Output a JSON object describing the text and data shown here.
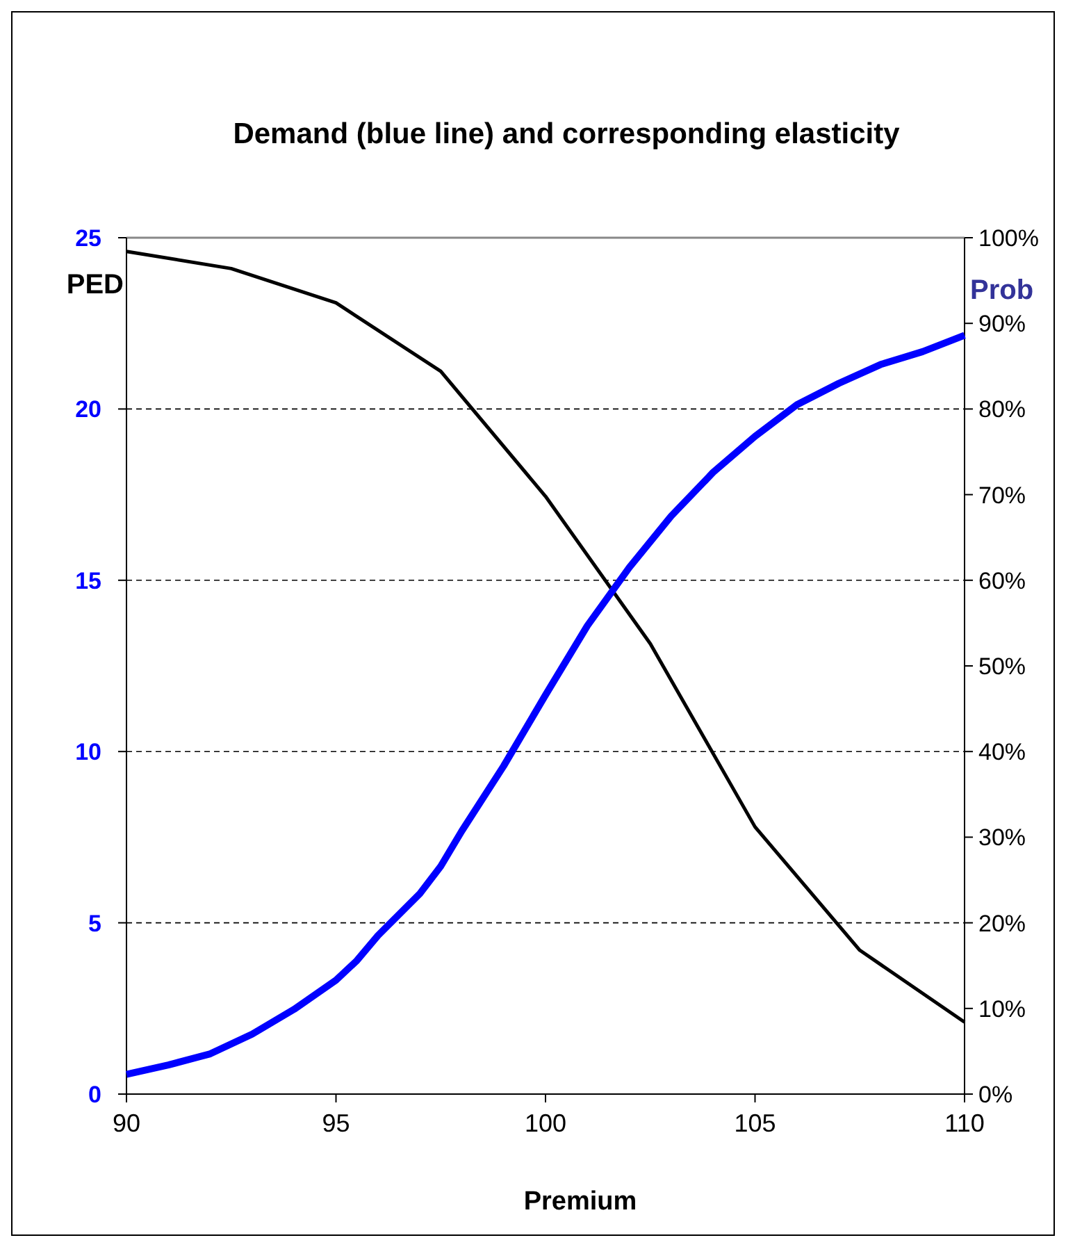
{
  "chart_data": {
    "type": "line",
    "title": "Demand (blue line) and corresponding elasticity",
    "xlabel": "Premium",
    "ylabel": "PED",
    "y2label": "Prob",
    "xlim": [
      90,
      110
    ],
    "xticks": [
      90,
      95,
      100,
      105,
      110
    ],
    "ylim": [
      0,
      25
    ],
    "yticks": [
      0,
      5,
      10,
      15,
      20,
      25
    ],
    "y2lim": [
      0,
      100
    ],
    "y2ticks": [
      {
        "value": 0,
        "label": "0%"
      },
      {
        "value": 10,
        "label": "10%"
      },
      {
        "value": 20,
        "label": "20%"
      },
      {
        "value": 30,
        "label": "30%"
      },
      {
        "value": 40,
        "label": "40%"
      },
      {
        "value": 50,
        "label": "50%"
      },
      {
        "value": 60,
        "label": "60%"
      },
      {
        "value": 70,
        "label": "70%"
      },
      {
        "value": 80,
        "label": "80%"
      },
      {
        "value": 90,
        "label": "90%"
      },
      {
        "value": 100,
        "label": "100%"
      }
    ],
    "grid": "y",
    "marker": "none",
    "line_style": "solid",
    "series": [
      {
        "color": "#000000",
        "x": [
          90,
          92.5,
          95,
          97.5,
          100,
          102.5,
          105,
          107.5,
          110
        ],
        "values": [
          24.6,
          24.1,
          23.1,
          21.1,
          17.45,
          13.15,
          7.8,
          4.2,
          2.1
        ]
      },
      {
        "color": "#0000ff",
        "axis": "y2",
        "x": [
          90,
          91,
          92,
          93,
          94,
          95,
          95.5,
          96,
          97,
          97.5,
          98,
          99,
          100,
          101,
          102,
          103,
          104,
          105,
          106,
          107,
          108,
          109,
          110
        ],
        "values": [
          2.3,
          3.4,
          4.7,
          7,
          9.9,
          13.3,
          15.6,
          18.5,
          23.4,
          26.6,
          30.7,
          38.3,
          46.6,
          54.7,
          61.5,
          67.5,
          72.6,
          76.8,
          80.5,
          83,
          85.2,
          86.7,
          88.6
        ]
      }
    ]
  }
}
